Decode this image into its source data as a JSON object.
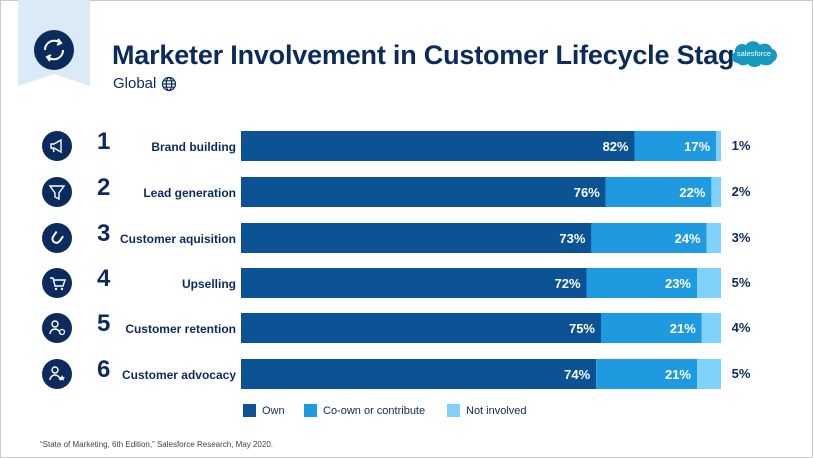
{
  "header": {
    "title": "Marketer Involvement in Customer Lifecycle Stage",
    "subtitle": "Global",
    "logo_text": "salesforce"
  },
  "colors": {
    "own": "#0b5394",
    "coown": "#1f9ae0",
    "not_involved": "#7fd2fb",
    "title": "#0b2b5c",
    "icon_bg": "#0b2b5c"
  },
  "rows": [
    {
      "rank": "1",
      "label": "Brand building",
      "icon": "megaphone-icon",
      "other_label": "1%"
    },
    {
      "rank": "2",
      "label": "Lead generation",
      "icon": "funnel-icon",
      "other_label": "2%"
    },
    {
      "rank": "3",
      "label": "Customer aquisition",
      "icon": "magnet-icon",
      "other_label": "3%"
    },
    {
      "rank": "4",
      "label": "Upselling",
      "icon": "cart-icon",
      "other_label": "5%"
    },
    {
      "rank": "5",
      "label": "Customer retention",
      "icon": "user-refresh-icon",
      "other_label": "4%"
    },
    {
      "rank": "6",
      "label": "Customer advocacy",
      "icon": "user-star-icon",
      "other_label": "5%"
    }
  ],
  "chart_data": {
    "type": "bar",
    "orientation": "horizontal",
    "stacked": true,
    "categories": [
      "Brand building",
      "Lead generation",
      "Customer aquisition",
      "Upselling",
      "Customer retention",
      "Customer advocacy"
    ],
    "series": [
      {
        "name": "Own",
        "values": [
          82,
          76,
          73,
          72,
          75,
          74
        ]
      },
      {
        "name": "Co-own or contribute",
        "values": [
          17,
          22,
          24,
          23,
          21,
          21
        ]
      },
      {
        "name": "Not involved",
        "values": [
          1,
          2,
          3,
          5,
          4,
          5
        ]
      }
    ],
    "value_labels": {
      "Own": [
        "82%",
        "76%",
        "73%",
        "72%",
        "75%",
        "74%"
      ],
      "Co-own or contribute": [
        "17%",
        "22%",
        "24%",
        "23%",
        "21%",
        "21%"
      ]
    },
    "xlim": [
      0,
      100
    ],
    "legend_position": "bottom",
    "grid": false
  },
  "legend": [
    {
      "label": "Own"
    },
    {
      "label": "Co-own or contribute"
    },
    {
      "label": "Not involved"
    }
  ],
  "source": "“State of Marketing, 6th Edition,” Salesforce Research, May 2020."
}
